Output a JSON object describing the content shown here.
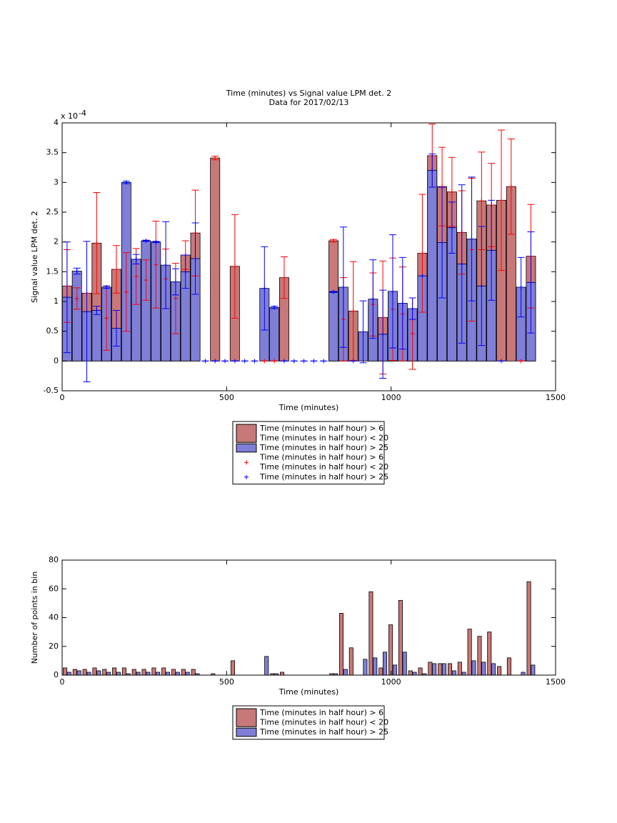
{
  "chart_data": [
    {
      "type": "bar-errorbar",
      "title": "Time (minutes) vs Signal value LPM det. 2",
      "subtitle": "Data for 2017/02/13",
      "x_label": "Time (minutes)",
      "y_label": "Signal value LPM det. 2",
      "y_multiplier": "x 10",
      "y_exponent": "-4",
      "xlim": [
        0,
        1500
      ],
      "xticks": [
        0,
        500,
        1000,
        1500
      ],
      "ylim": [
        -0.5,
        4
      ],
      "yticks": [
        -0.5,
        0,
        0.5,
        1,
        1.5,
        2,
        2.5,
        3,
        3.5,
        4
      ],
      "x": [
        15,
        45,
        75,
        105,
        135,
        165,
        195,
        225,
        255,
        285,
        315,
        345,
        375,
        405,
        435,
        465,
        495,
        525,
        555,
        585,
        615,
        645,
        675,
        705,
        735,
        765,
        795,
        825,
        855,
        885,
        915,
        945,
        975,
        1005,
        1035,
        1065,
        1095,
        1125,
        1155,
        1185,
        1215,
        1245,
        1275,
        1305,
        1335,
        1365,
        1395,
        1425
      ],
      "series": [
        {
          "color": "#c87878",
          "error_color": "#ff0000",
          "values": [
            1.26,
            1.05,
            1.14,
            1.98,
            0.72,
            1.54,
            1.16,
            1.42,
            1.36,
            1.62,
            1.38,
            1.05,
            1.78,
            2.15,
            null,
            3.41,
            null,
            1.59,
            null,
            null,
            0,
            0,
            1.4,
            null,
            null,
            null,
            null,
            2.02,
            0.7,
            0.84,
            null,
            0.95,
            0.73,
            0.87,
            0.79,
            0.46,
            1.81,
            3.45,
            2.93,
            2.84,
            2.16,
            1.87,
            2.69,
            2.62,
            2.7,
            2.93,
            0,
            1.76
          ],
          "errors": [
            0.61,
            0.18,
            null,
            0.85,
            0.54,
            0.4,
            0.66,
            0.47,
            0.34,
            0.73,
            0.5,
            0.59,
            0.24,
            0.72,
            null,
            0.03,
            null,
            0.87,
            null,
            null,
            0,
            0,
            0.35,
            null,
            null,
            null,
            null,
            0.02,
            0.7,
            0.83,
            null,
            0.53,
            0.95,
            0.86,
            0.79,
            0.6,
            0.99,
            0.53,
            0.66,
            0.58,
            0.7,
            1.2,
            0.82,
            0.7,
            1.18,
            0.8,
            0,
            0.87
          ]
        },
        {
          "color": "#7f7fd8",
          "error_color": "#0000ff",
          "values": [
            1.07,
            1.51,
            0.83,
            0.85,
            1.24,
            0.55,
            3.0,
            1.71,
            2.02,
            2.0,
            1.61,
            1.33,
            1.5,
            1.72,
            0,
            0,
            0,
            0,
            0,
            0,
            1.22,
            0.9,
            0,
            0,
            0,
            0,
            0,
            1.16,
            1.24,
            0,
            0.49,
            1.04,
            0.45,
            1.17,
            0.97,
            0.88,
            1.43,
            3.2,
            1.99,
            2.24,
            1.63,
            2.05,
            1.26,
            1.86,
            0,
            null,
            1.24,
            1.32
          ],
          "errors": [
            0.93,
            0.05,
            1.18,
            0.07,
            0.02,
            0.3,
            0.02,
            0.08,
            0.01,
            0.01,
            0.73,
            0.22,
            0.28,
            0.6,
            0,
            0,
            0,
            0,
            0,
            0,
            0.7,
            0.02,
            0,
            0,
            0,
            0,
            0,
            0.01,
            1.01,
            0,
            0.52,
            0.66,
            0.74,
            0.95,
            0.77,
            0.18,
            null,
            0.28,
            0.93,
            0.43,
            1.33,
            1.04,
            1.0,
            0.84,
            0,
            null,
            0.5,
            0.85
          ]
        }
      ],
      "legend": [
        {
          "marker": "patch",
          "color": "#c87878",
          "lines": [
            "Time (minutes in half hour) > 6",
            "Time (minutes in half hour) < 20"
          ]
        },
        {
          "marker": "patch",
          "color": "#7f7fd8",
          "lines": [
            "Time (minutes in half hour) > 25"
          ]
        },
        {
          "marker": "plus",
          "color": "#ff0000",
          "lines": [
            "Time (minutes in half hour) > 6",
            "Time (minutes in half hour) < 20"
          ]
        },
        {
          "marker": "plus",
          "color": "#0000ff",
          "lines": [
            "Time (minutes in half hour) > 25"
          ]
        }
      ]
    },
    {
      "type": "grouped-bar",
      "x_label": "Time (minutes)",
      "y_label": "Number of points in bin",
      "xlim": [
        0,
        1500
      ],
      "xticks": [
        0,
        500,
        1000,
        1500
      ],
      "ylim": [
        0,
        80
      ],
      "yticks": [
        0,
        20,
        40,
        60,
        80
      ],
      "x": [
        15,
        45,
        75,
        105,
        135,
        165,
        195,
        225,
        255,
        285,
        315,
        345,
        375,
        405,
        435,
        465,
        495,
        525,
        555,
        585,
        615,
        645,
        675,
        705,
        735,
        765,
        795,
        825,
        855,
        885,
        915,
        945,
        975,
        1005,
        1035,
        1065,
        1095,
        1125,
        1155,
        1185,
        1215,
        1245,
        1275,
        1305,
        1335,
        1365,
        1395,
        1425
      ],
      "series": [
        {
          "color": "#c87878",
          "values": [
            5,
            4,
            4,
            5,
            4,
            5,
            5,
            4,
            4,
            5,
            5,
            4,
            4,
            4,
            0,
            1,
            0,
            10,
            0,
            0,
            0,
            1,
            2,
            0,
            0,
            0,
            0,
            1,
            43,
            19,
            0,
            58,
            5,
            35,
            52,
            3,
            5,
            9,
            8,
            8,
            9,
            32,
            27,
            30,
            6,
            12,
            0,
            65
          ]
        },
        {
          "color": "#7f7fd8",
          "values": [
            2,
            3,
            2,
            3,
            2,
            2,
            1,
            2,
            2,
            2,
            2,
            2,
            2,
            1,
            0,
            0,
            0,
            0,
            0,
            0,
            13,
            1,
            0,
            0,
            0,
            0,
            0,
            1,
            4,
            0,
            11,
            12,
            16,
            7,
            16,
            2,
            1,
            8,
            8,
            3,
            2,
            10,
            9,
            8,
            0,
            0,
            2,
            7
          ]
        }
      ],
      "legend": [
        {
          "marker": "patch",
          "color": "#c87878",
          "lines": [
            "Time (minutes in half hour) > 6",
            "Time (minutes in half hour) < 20"
          ]
        },
        {
          "marker": "patch",
          "color": "#7f7fd8",
          "lines": [
            "Time (minutes in half hour) > 25"
          ]
        }
      ]
    }
  ]
}
